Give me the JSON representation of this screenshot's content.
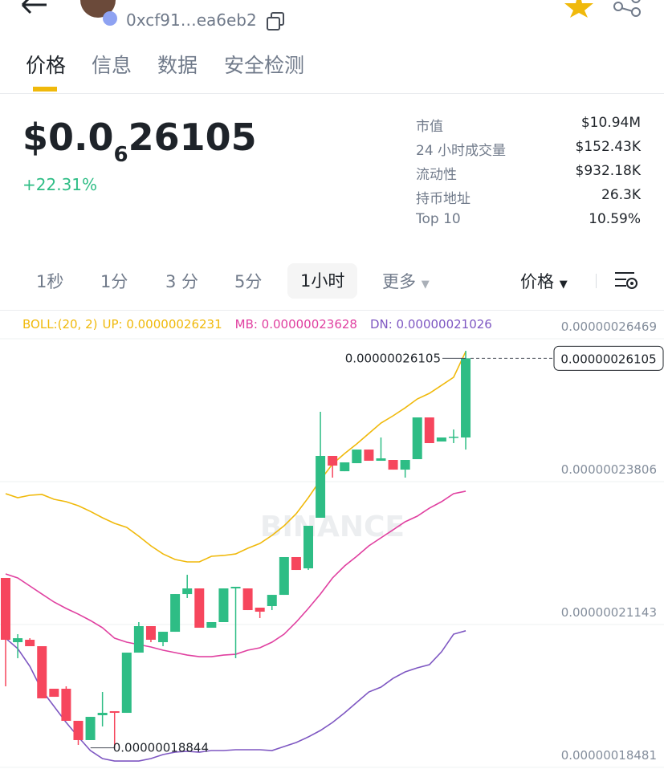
{
  "header": {
    "address": "0xcf91…ea6eb2"
  },
  "tabs": [
    "价格",
    "信息",
    "数据",
    "安全检测"
  ],
  "price": {
    "prefix": "$0.0",
    "zeros": "6",
    "digits": "26105",
    "change": "+22.31%"
  },
  "stats": [
    {
      "label": "市值",
      "value": "$10.94M"
    },
    {
      "label": "24 小时成交量",
      "value": "$152.43K"
    },
    {
      "label": "流动性",
      "value": "$932.18K"
    },
    {
      "label": "持币地址",
      "value": "26.3K"
    },
    {
      "label": "Top 10",
      "value": "10.59%"
    }
  ],
  "intervals": [
    "1秒",
    "1分",
    "3 分",
    "5分",
    "1小时",
    "更多"
  ],
  "price_selector": "价格",
  "chart_data": {
    "type": "candlestick",
    "watermark": "BINANCE",
    "indicator": "BOLL:(20, 2)",
    "up_color": "#2ebd85",
    "down_color": "#f6465d",
    "ylim": [
      1.845e-07,
      2.6978e-07
    ],
    "yticks": [
      {
        "value": 2.6469e-07,
        "label": "0.00000026469"
      },
      {
        "value": 2.3806e-07,
        "label": "0.00000023806"
      },
      {
        "value": 2.1143e-07,
        "label": "0.00000021143"
      },
      {
        "value": 1.8481e-07,
        "label": "0.00000018481"
      }
    ],
    "last_price_label": "0.00000026105",
    "low_label": "0.00000018844",
    "series": [
      {
        "label": "UP: 0.00000026231",
        "color": "#f0b90b",
        "values": [
          2.3582e-07,
          2.3507e-07,
          2.3552e-07,
          2.3567e-07,
          2.3477e-07,
          2.3432e-07,
          2.3357e-07,
          2.3252e-07,
          2.3133e-07,
          2.3028e-07,
          2.2953e-07,
          2.2789e-07,
          2.2609e-07,
          2.2459e-07,
          2.2355e-07,
          2.231e-07,
          2.231e-07,
          2.2415e-07,
          2.243e-07,
          2.2459e-07,
          2.2564e-07,
          2.2654e-07,
          2.2804e-07,
          2.2983e-07,
          2.3208e-07,
          2.3507e-07,
          2.3836e-07,
          2.4135e-07,
          2.433e-07,
          2.4509e-07,
          2.4704e-07,
          2.4898e-07,
          2.5033e-07,
          2.5182e-07,
          2.5347e-07,
          2.5452e-07,
          2.5601e-07,
          2.5751e-07,
          2.6231e-07
        ]
      },
      {
        "label": "MB: 0.00000023628",
        "color": "#e040a0",
        "values": [
          2.2085e-07,
          2.2011e-07,
          2.1861e-07,
          2.1711e-07,
          2.1562e-07,
          2.1442e-07,
          2.1337e-07,
          2.1218e-07,
          2.1083e-07,
          2.0888e-07,
          2.0814e-07,
          2.0769e-07,
          2.0724e-07,
          2.0664e-07,
          2.0619e-07,
          2.0574e-07,
          2.0544e-07,
          2.0544e-07,
          2.0574e-07,
          2.0589e-07,
          2.0664e-07,
          2.0709e-07,
          2.0814e-07,
          2.0963e-07,
          2.1188e-07,
          2.1442e-07,
          2.1711e-07,
          2.2011e-07,
          2.2235e-07,
          2.2415e-07,
          2.2609e-07,
          2.2759e-07,
          2.2908e-07,
          2.3058e-07,
          2.3163e-07,
          2.3312e-07,
          2.3432e-07,
          2.3582e-07,
          2.3628e-07
        ]
      },
      {
        "label": "DN: 0.00000021026",
        "color": "#7e57c2",
        "values": [
          2.0888e-07,
          2.0694e-07,
          2.0365e-07,
          1.9916e-07,
          1.9617e-07,
          1.9318e-07,
          1.9048e-07,
          1.8794e-07,
          1.8644e-07,
          1.8599e-07,
          1.8599e-07,
          1.8599e-07,
          1.8644e-07,
          1.8719e-07,
          1.8764e-07,
          1.8779e-07,
          1.8764e-07,
          1.8794e-07,
          1.8794e-07,
          1.8809e-07,
          1.8809e-07,
          1.8809e-07,
          1.8794e-07,
          1.8869e-07,
          1.8944e-07,
          1.9048e-07,
          1.9168e-07,
          1.9318e-07,
          1.9497e-07,
          1.9692e-07,
          1.9886e-07,
          1.9976e-07,
          2.014e-07,
          2.026e-07,
          2.0335e-07,
          2.0395e-07,
          2.0634e-07,
          2.0963e-07,
          2.1026e-07
        ]
      }
    ],
    "candles": [
      {
        "o": 2.2011e-07,
        "h": 2.2011e-07,
        "l": 1.9991e-07,
        "c": 2.0859e-07
      },
      {
        "o": 2.0814e-07,
        "h": 2.0963e-07,
        "l": 2.0515e-07,
        "c": 2.0888e-07
      },
      {
        "o": 2.0859e-07,
        "h": 2.0888e-07,
        "l": 2.0739e-07,
        "c": 2.0739e-07
      },
      {
        "o": 2.0739e-07,
        "h": 2.0739e-07,
        "l": 1.9767e-07,
        "c": 1.9767e-07
      },
      {
        "o": 1.9946e-07,
        "h": 1.9946e-07,
        "l": 1.9796e-07,
        "c": 1.9796e-07
      },
      {
        "o": 1.9946e-07,
        "h": 1.9991e-07,
        "l": 1.9348e-07,
        "c": 1.9348e-07
      },
      {
        "o": 1.9348e-07,
        "h": 1.9348e-07,
        "l": 1.8899e-07,
        "c": 1.8989e-07
      },
      {
        "o": 1.8989e-07,
        "h": 1.9422e-07,
        "l": 1.8989e-07,
        "c": 1.9422e-07
      },
      {
        "o": 1.9452e-07,
        "h": 1.9886e-07,
        "l": 1.9243e-07,
        "c": 1.9497e-07
      },
      {
        "o": 1.9527e-07,
        "h": 1.9527e-07,
        "l": 1.8844e-07,
        "c": 1.9497e-07
      },
      {
        "o": 1.9497e-07,
        "h": 2.0619e-07,
        "l": 1.9497e-07,
        "c": 2.0619e-07
      },
      {
        "o": 2.0619e-07,
        "h": 2.1188e-07,
        "l": 2.0619e-07,
        "c": 2.1113e-07
      },
      {
        "o": 2.1113e-07,
        "h": 2.1113e-07,
        "l": 2.0814e-07,
        "c": 2.0859e-07
      },
      {
        "o": 2.0814e-07,
        "h": 2.1008e-07,
        "l": 2.0739e-07,
        "c": 2.1008e-07
      },
      {
        "o": 2.1008e-07,
        "h": 2.1711e-07,
        "l": 2.1008e-07,
        "c": 2.1711e-07
      },
      {
        "o": 2.1711e-07,
        "h": 2.207e-07,
        "l": 2.1637e-07,
        "c": 2.1816e-07
      },
      {
        "o": 2.1816e-07,
        "h": 2.1816e-07,
        "l": 2.1083e-07,
        "c": 2.1083e-07
      },
      {
        "o": 2.1083e-07,
        "h": 2.1188e-07,
        "l": 2.1083e-07,
        "c": 2.1188e-07
      },
      {
        "o": 2.1188e-07,
        "h": 2.1816e-07,
        "l": 2.1188e-07,
        "c": 2.1816e-07
      },
      {
        "o": 2.1816e-07,
        "h": 2.1846e-07,
        "l": 2.0515e-07,
        "c": 2.1846e-07
      },
      {
        "o": 2.1816e-07,
        "h": 2.1816e-07,
        "l": 2.1412e-07,
        "c": 2.1412e-07
      },
      {
        "o": 2.1457e-07,
        "h": 2.1457e-07,
        "l": 2.1263e-07,
        "c": 2.1382e-07
      },
      {
        "o": 2.1487e-07,
        "h": 2.1696e-07,
        "l": 2.1412e-07,
        "c": 2.1696e-07
      },
      {
        "o": 2.1696e-07,
        "h": 2.24e-07,
        "l": 2.1696e-07,
        "c": 2.24e-07
      },
      {
        "o": 2.24e-07,
        "h": 2.24e-07,
        "l": 2.216e-07,
        "c": 2.216e-07
      },
      {
        "o": 2.219e-07,
        "h": 2.2983e-07,
        "l": 2.216e-07,
        "c": 2.2983e-07
      },
      {
        "o": 2.3133e-07,
        "h": 2.5108e-07,
        "l": 2.3133e-07,
        "c": 2.4285e-07
      },
      {
        "o": 2.4285e-07,
        "h": 2.4285e-07,
        "l": 2.3881e-07,
        "c": 2.4105e-07
      },
      {
        "o": 2.4e-07,
        "h": 2.4165e-07,
        "l": 2.4e-07,
        "c": 2.4165e-07
      },
      {
        "o": 2.415e-07,
        "h": 2.4404e-07,
        "l": 2.415e-07,
        "c": 2.4404e-07
      },
      {
        "o": 2.4404e-07,
        "h": 2.4404e-07,
        "l": 2.4195e-07,
        "c": 2.4195e-07
      },
      {
        "o": 2.4195e-07,
        "h": 2.4629e-07,
        "l": 2.4195e-07,
        "c": 2.424e-07
      },
      {
        "o": 2.421e-07,
        "h": 2.421e-07,
        "l": 2.403e-07,
        "c": 2.403e-07
      },
      {
        "o": 2.403e-07,
        "h": 2.421e-07,
        "l": 2.3881e-07,
        "c": 2.421e-07
      },
      {
        "o": 2.4225e-07,
        "h": 2.5003e-07,
        "l": 2.4225e-07,
        "c": 2.5003e-07
      },
      {
        "o": 2.5003e-07,
        "h": 2.5003e-07,
        "l": 2.4524e-07,
        "c": 2.4524e-07
      },
      {
        "o": 2.4554e-07,
        "h": 2.4629e-07,
        "l": 2.4554e-07,
        "c": 2.4629e-07
      },
      {
        "o": 2.4629e-07,
        "h": 2.4778e-07,
        "l": 2.4524e-07,
        "c": 2.4644e-07
      },
      {
        "o": 2.4629e-07,
        "h": 2.6245e-07,
        "l": 2.4404e-07,
        "c": 2.6105e-07
      }
    ]
  }
}
